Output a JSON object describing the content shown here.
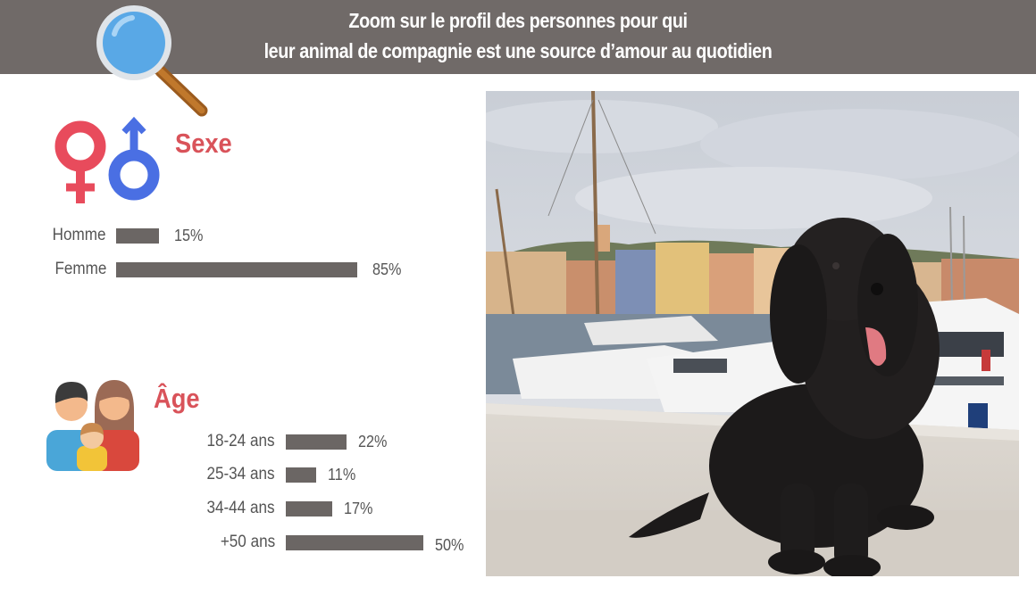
{
  "header": {
    "line1": "Zoom sur le profil des personnes pour qui",
    "line2": "leur animal de compagnie est une source d’amour au quotidien"
  },
  "icons": {
    "magnifier": "magnifier-icon",
    "gender": "gender-symbols-icon",
    "family": "family-icon"
  },
  "colors": {
    "header_bg": "#706a68",
    "accent": "#d9535a",
    "bar": "#6b6664",
    "female": "#e84b5c",
    "male": "#4a6fe3"
  },
  "chart_data": [
    {
      "type": "bar",
      "orientation": "horizontal",
      "title": "Sexe",
      "categories": [
        "Homme",
        "Femme"
      ],
      "values": [
        15,
        85
      ],
      "value_labels": [
        "15%",
        "85%"
      ],
      "unit": "%",
      "xlim": [
        0,
        85
      ]
    },
    {
      "type": "bar",
      "orientation": "horizontal",
      "title": "Âge",
      "categories": [
        "18-24 ans",
        "25-34 ans",
        "34-44 ans",
        "+50 ans"
      ],
      "values": [
        22,
        11,
        17,
        50
      ],
      "value_labels": [
        "22%",
        "11%",
        "17%",
        "50%"
      ],
      "unit": "%",
      "xlim": [
        0,
        50
      ]
    }
  ],
  "photo": {
    "subject": "black-dog-harbor-photo"
  }
}
